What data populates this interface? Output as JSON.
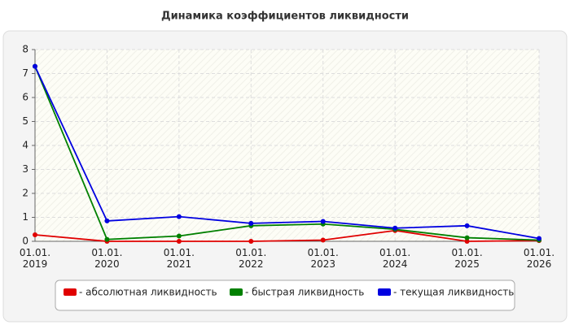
{
  "chart_data": {
    "type": "line",
    "title": "Динамика коэффициентов ликвидности",
    "categories": [
      "01.01.\n2019",
      "01.01.\n2020",
      "01.01.\n2021",
      "01.01.\n2022",
      "01.01.\n2023",
      "01.01.\n2024",
      "01.01.\n2025",
      "01.01.\n2026"
    ],
    "series": [
      {
        "name": "- абсолютная ликвидность",
        "color": "#e00000",
        "values": [
          0.27,
          0.0,
          0.0,
          0.0,
          0.05,
          0.45,
          0.0,
          0.03
        ]
      },
      {
        "name": "- быстрая ликвидность",
        "color": "#008000",
        "values": [
          7.3,
          0.08,
          0.22,
          0.65,
          0.72,
          0.5,
          0.15,
          0.05
        ]
      },
      {
        "name": "- текущая ликвидность",
        "color": "#0000e0",
        "values": [
          7.3,
          0.85,
          1.03,
          0.75,
          0.83,
          0.55,
          0.65,
          0.12
        ]
      }
    ],
    "ylim": [
      0,
      8
    ],
    "yticks": [
      0,
      1,
      2,
      3,
      4,
      5,
      6,
      7,
      8
    ],
    "grid": true,
    "legend": "bottom"
  }
}
